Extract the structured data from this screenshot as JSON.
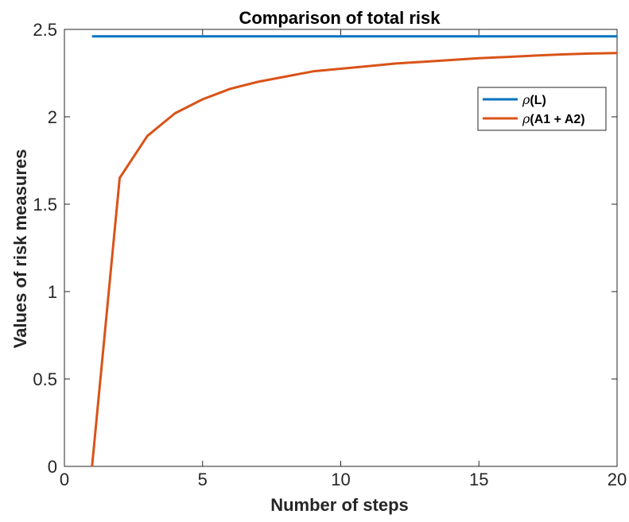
{
  "chart_data": {
    "type": "line",
    "title": "Comparison of total risk",
    "xlabel": "Number of steps",
    "ylabel": "Values of risk measures",
    "xlim": [
      0,
      20
    ],
    "ylim": [
      0,
      2.5
    ],
    "xticks": [
      0,
      5,
      10,
      15,
      20
    ],
    "xtick_labels": [
      "0",
      "5",
      "10",
      "15",
      "20"
    ],
    "yticks": [
      0,
      0.5,
      1,
      1.5,
      2,
      2.5
    ],
    "ytick_labels": [
      "0",
      "0.5",
      "1",
      "1.5",
      "2",
      "2.5"
    ],
    "grid": false,
    "legend_position": "top-right",
    "series": [
      {
        "name": "ρ(L)",
        "legend_symbol": "ρ",
        "legend_rest": "(L)",
        "color": "#0072BD",
        "x": [
          1,
          20
        ],
        "y": [
          2.46,
          2.46
        ]
      },
      {
        "name": "ρ(A1 + A2)",
        "legend_symbol": "ρ",
        "legend_rest": "(A1 + A2)",
        "color": "#D95319",
        "x": [
          1,
          2,
          3,
          4,
          5,
          6,
          7,
          8,
          9,
          10,
          11,
          12,
          13,
          14,
          15,
          16,
          17,
          18,
          19,
          20
        ],
        "y": [
          0,
          1.65,
          1.89,
          2.02,
          2.1,
          2.16,
          2.2,
          2.23,
          2.26,
          2.275,
          2.29,
          2.305,
          2.315,
          2.325,
          2.335,
          2.342,
          2.35,
          2.357,
          2.362,
          2.365
        ]
      }
    ]
  }
}
